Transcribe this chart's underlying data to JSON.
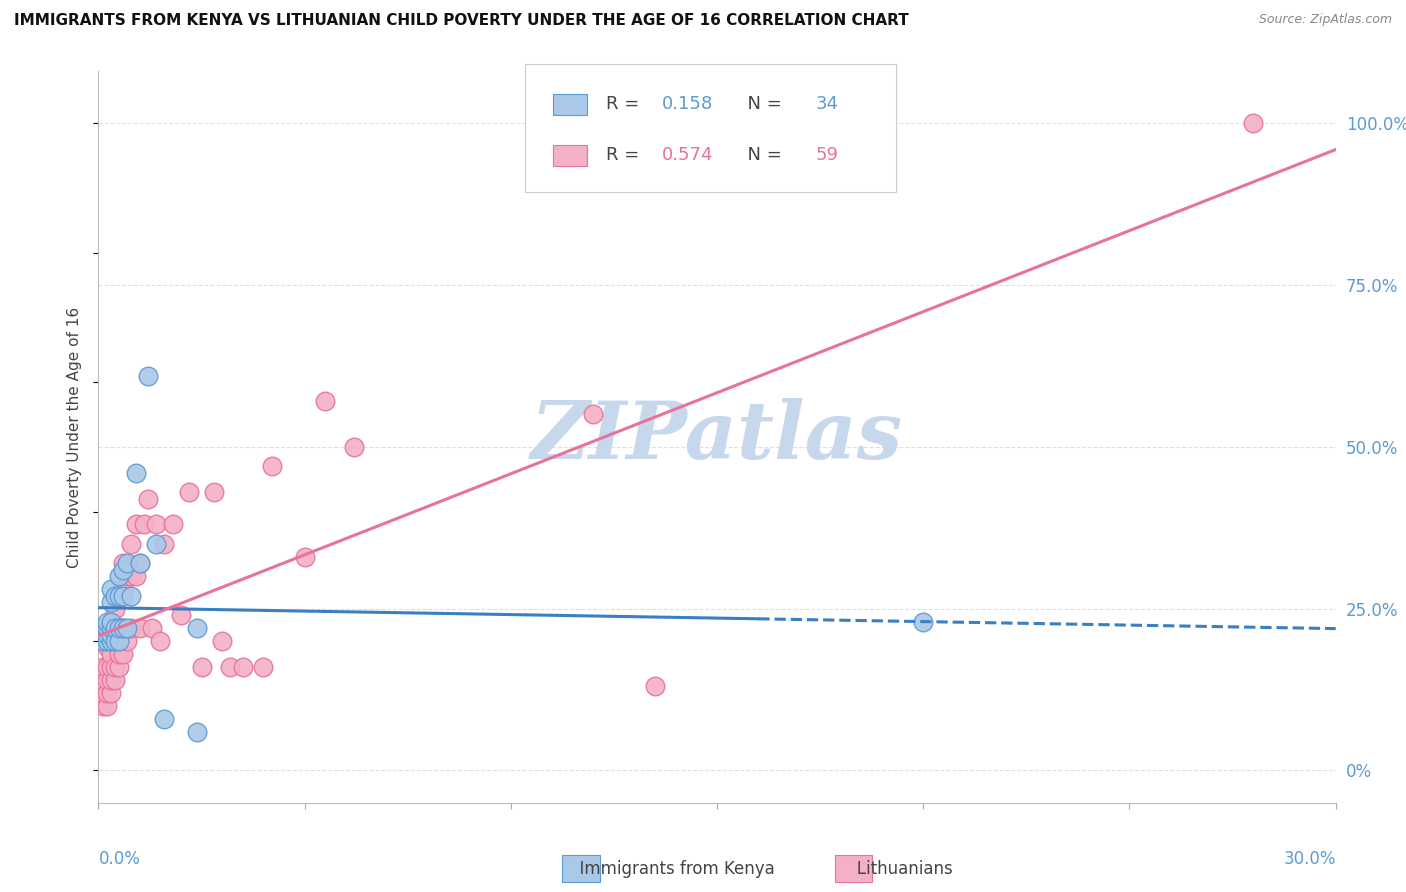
{
  "title": "IMMIGRANTS FROM KENYA VS LITHUANIAN CHILD POVERTY UNDER THE AGE OF 16 CORRELATION CHART",
  "source": "Source: ZipAtlas.com",
  "ylabel": "Child Poverty Under the Age of 16",
  "right_yticks": [
    "0%",
    "25.0%",
    "50.0%",
    "75.0%",
    "100.0%"
  ],
  "right_ytick_vals": [
    0.0,
    0.25,
    0.5,
    0.75,
    1.0
  ],
  "legend1_r": "0.158",
  "legend1_n": "34",
  "legend2_r": "0.574",
  "legend2_n": "59",
  "xlim": [
    0.0,
    0.3
  ],
  "ylim": [
    -0.05,
    1.08
  ],
  "kenya_fill": "#aac8e8",
  "kenya_edge": "#5b9bd5",
  "lith_fill": "#f4b0c5",
  "lith_edge": "#e8729a",
  "kenya_line_color": "#3a7fc1",
  "lith_line_color": "#e8729a",
  "watermark_color": "#c8d8ec",
  "background_color": "#ffffff",
  "grid_color": "#e0e0e0",
  "kenya_scatter_x": [
    0.001,
    0.001,
    0.001,
    0.002,
    0.002,
    0.002,
    0.002,
    0.003,
    0.003,
    0.003,
    0.003,
    0.003,
    0.003,
    0.004,
    0.004,
    0.004,
    0.005,
    0.005,
    0.005,
    0.005,
    0.006,
    0.006,
    0.006,
    0.007,
    0.007,
    0.008,
    0.009,
    0.01,
    0.012,
    0.014,
    0.016,
    0.024,
    0.024,
    0.2
  ],
  "kenya_scatter_y": [
    0.2,
    0.21,
    0.22,
    0.2,
    0.21,
    0.22,
    0.23,
    0.2,
    0.21,
    0.22,
    0.23,
    0.26,
    0.28,
    0.2,
    0.22,
    0.27,
    0.2,
    0.22,
    0.27,
    0.3,
    0.22,
    0.27,
    0.31,
    0.22,
    0.32,
    0.27,
    0.46,
    0.32,
    0.61,
    0.35,
    0.08,
    0.22,
    0.06,
    0.23
  ],
  "lith_scatter_x": [
    0.001,
    0.001,
    0.001,
    0.001,
    0.002,
    0.002,
    0.002,
    0.002,
    0.002,
    0.003,
    0.003,
    0.003,
    0.003,
    0.003,
    0.003,
    0.004,
    0.004,
    0.004,
    0.004,
    0.004,
    0.005,
    0.005,
    0.005,
    0.005,
    0.006,
    0.006,
    0.006,
    0.006,
    0.007,
    0.007,
    0.008,
    0.008,
    0.008,
    0.009,
    0.009,
    0.01,
    0.01,
    0.011,
    0.012,
    0.013,
    0.014,
    0.015,
    0.016,
    0.018,
    0.02,
    0.022,
    0.025,
    0.028,
    0.03,
    0.032,
    0.035,
    0.04,
    0.042,
    0.05,
    0.055,
    0.062,
    0.12,
    0.135,
    0.28
  ],
  "lith_scatter_y": [
    0.1,
    0.12,
    0.14,
    0.16,
    0.1,
    0.12,
    0.14,
    0.16,
    0.19,
    0.12,
    0.14,
    0.16,
    0.18,
    0.2,
    0.22,
    0.14,
    0.16,
    0.2,
    0.22,
    0.25,
    0.16,
    0.18,
    0.2,
    0.22,
    0.18,
    0.22,
    0.28,
    0.32,
    0.2,
    0.3,
    0.22,
    0.3,
    0.35,
    0.3,
    0.38,
    0.22,
    0.32,
    0.38,
    0.42,
    0.22,
    0.38,
    0.2,
    0.35,
    0.38,
    0.24,
    0.43,
    0.16,
    0.43,
    0.2,
    0.16,
    0.16,
    0.16,
    0.47,
    0.33,
    0.57,
    0.5,
    0.55,
    0.13,
    1.0
  ]
}
